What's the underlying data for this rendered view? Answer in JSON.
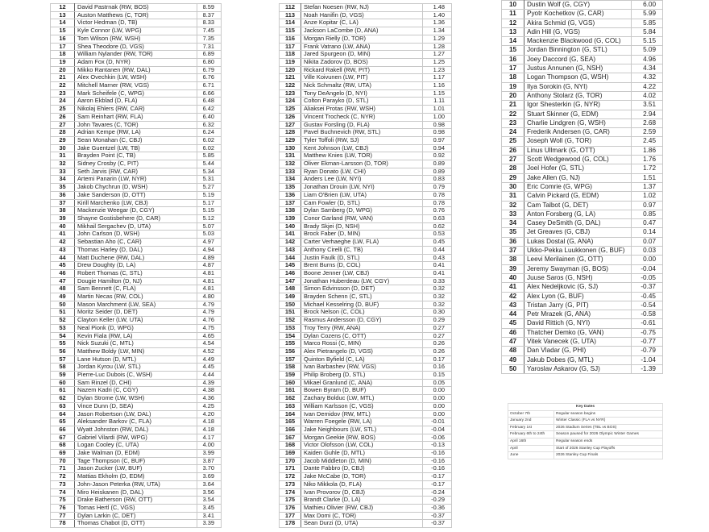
{
  "skater_table_1": [
    [
      "12",
      "David Pastrnak (RW, BOS)",
      "8.59"
    ],
    [
      "13",
      "Auston Matthews (C, TOR)",
      "8.37"
    ],
    [
      "14",
      "Victor Hedman (D, TB)",
      "8.33"
    ],
    [
      "15",
      "Kyle Connor (LW, WPG)",
      "7.45"
    ],
    [
      "16",
      "Tom Wilson (RW, WSH)",
      "7.35"
    ],
    [
      "17",
      "Shea Theodore (D, VGS)",
      "7.31"
    ],
    [
      "18",
      "William Nylander (RW, TOR)",
      "6.89"
    ],
    [
      "19",
      "Adam Fox (D, NYR)",
      "6.80"
    ],
    [
      "20",
      "Mikko Rantanen (RW, DAL)",
      "6.79"
    ],
    [
      "21",
      "Alex Ovechkin (LW, WSH)",
      "6.76"
    ],
    [
      "22",
      "Mitchell Marner (RW, VGS)",
      "6.71"
    ],
    [
      "23",
      "Mark Scheifele (C, WPG)",
      "6.66"
    ],
    [
      "24",
      "Aaron Ekblad (D, FLA)",
      "6.48"
    ],
    [
      "25",
      "Nikolaj Ehlers (RW, CAR)",
      "6.42"
    ],
    [
      "26",
      "Sam Reinhart (RW, FLA)",
      "6.40"
    ],
    [
      "27",
      "John Tavares (C, TOR)",
      "6.32"
    ],
    [
      "28",
      "Adrian Kempe (RW, LA)",
      "6.24"
    ],
    [
      "29",
      "Sean Monahan (C, CBJ)",
      "6.02"
    ],
    [
      "30",
      "Jake Guentzel (LW, TB)",
      "6.02"
    ],
    [
      "31",
      "Brayden Point (C, TB)",
      "5.85"
    ],
    [
      "32",
      "Sidney Crosby (C, PIT)",
      "5.44"
    ],
    [
      "33",
      "Seth Jarvis (RW, CAR)",
      "5.34"
    ],
    [
      "34",
      "Artemi Panarin (LW, NYR)",
      "5.31"
    ],
    [
      "35",
      "Jakob Chychrun (D, WSH)",
      "5.27"
    ],
    [
      "36",
      "Jake Sanderson (D, OTT)",
      "5.19"
    ],
    [
      "37",
      "Kirill Marchenko (LW, CBJ)",
      "5.17"
    ],
    [
      "38",
      "Mackenzie Weegar (D, CGY)",
      "5.15"
    ],
    [
      "39",
      "Shayne Gostisbehere (D, CAR)",
      "5.12"
    ],
    [
      "40",
      "Mikhail Sergachev (D, UTA)",
      "5.07"
    ],
    [
      "41",
      "John Carlson (D, WSH)",
      "5.03"
    ],
    [
      "42",
      "Sebastian Aho (C, CAR)",
      "4.97"
    ],
    [
      "43",
      "Thomas Harley (D, DAL)",
      "4.94"
    ],
    [
      "44",
      "Matt Duchene (RW, DAL)",
      "4.89"
    ],
    [
      "45",
      "Drew Doughty (D, LA)",
      "4.87"
    ],
    [
      "46",
      "Robert Thomas (C, STL)",
      "4.81"
    ],
    [
      "47",
      "Dougie Hamilton (D, NJ)",
      "4.81"
    ],
    [
      "48",
      "Sam Bennett (C, FLA)",
      "4.81"
    ],
    [
      "49",
      "Martin Necas (RW, COL)",
      "4.80"
    ],
    [
      "50",
      "Mason Marchment (LW, SEA)",
      "4.79"
    ],
    [
      "51",
      "Moritz Seider (D, DET)",
      "4.79"
    ],
    [
      "52",
      "Clayton Keller (LW, UTA)",
      "4.76"
    ],
    [
      "53",
      "Neal Pionk (D, WPG)",
      "4.75"
    ],
    [
      "54",
      "Kevin Fiala (RW, LA)",
      "4.65"
    ],
    [
      "55",
      "Nick Suzuki (C, MTL)",
      "4.54"
    ],
    [
      "56",
      "Matthew Boldy (LW, MIN)",
      "4.52"
    ],
    [
      "57",
      "Lane Hutson (D, MTL)",
      "4.49"
    ],
    [
      "58",
      "Jordan Kyrou (LW, STL)",
      "4.45"
    ],
    [
      "59",
      "Pierre-Luc Dubois (C, WSH)",
      "4.44"
    ],
    [
      "60",
      "Sam Rinzel (D, CHI)",
      "4.39"
    ],
    [
      "61",
      "Nazem Kadri (C, CGY)",
      "4.38"
    ],
    [
      "62",
      "Dylan Strome (LW, WSH)",
      "4.36"
    ],
    [
      "63",
      "Vince Dunn (D, SEA)",
      "4.25"
    ],
    [
      "64",
      "Jason Robertson (LW, DAL)",
      "4.20"
    ],
    [
      "65",
      "Aleksander Barkov (C, FLA)",
      "4.18"
    ],
    [
      "66",
      "Wyatt Johnston (RW, DAL)",
      "4.18"
    ],
    [
      "67",
      "Gabriel Vilardi (RW, WPG)",
      "4.17"
    ],
    [
      "68",
      "Logan Cooley (C, UTA)",
      "4.00"
    ],
    [
      "69",
      "Jake Walman (D, EDM)",
      "3.99"
    ],
    [
      "70",
      "Tage Thompson (C, BUF)",
      "3.87"
    ],
    [
      "71",
      "Jason Zucker (LW, BUF)",
      "3.70"
    ],
    [
      "72",
      "Mattias Ekholm (D, EDM)",
      "3.69"
    ],
    [
      "73",
      "John-Jason Peterka (RW, UTA)",
      "3.64"
    ],
    [
      "74",
      "Miro Heiskanen (D, DAL)",
      "3.56"
    ],
    [
      "75",
      "Drake Batherson (RW, OTT)",
      "3.54"
    ],
    [
      "76",
      "Tomas Hertl (C, VGS)",
      "3.45"
    ],
    [
      "77",
      "Dylan Larkin (C, DET)",
      "3.41"
    ],
    [
      "78",
      "Thomas Chabot (D, OTT)",
      "3.39"
    ]
  ],
  "skater_table_2": [
    [
      "112",
      "Stefan Noesen (RW, NJ)",
      "1.48"
    ],
    [
      "113",
      "Noah Hanifin (D, VGS)",
      "1.40"
    ],
    [
      "114",
      "Anze Kopitar (C, LA)",
      "1.36"
    ],
    [
      "115",
      "Jackson LaCombe (D, ANA)",
      "1.34"
    ],
    [
      "116",
      "Morgan Rielly (D, TOR)",
      "1.29"
    ],
    [
      "117",
      "Frank Vatrano (LW, ANA)",
      "1.28"
    ],
    [
      "118",
      "Jared Spurgeon (D, MIN)",
      "1.27"
    ],
    [
      "119",
      "Nikita Zadorov (D, BOS)",
      "1.25"
    ],
    [
      "120",
      "Rickard Rakell (RW, PIT)",
      "1.23"
    ],
    [
      "121",
      "Ville Koivunen (LW, PIT)",
      "1.17"
    ],
    [
      "122",
      "Nick Schmaltz (RW, UTA)",
      "1.16"
    ],
    [
      "123",
      "Tony DeAngelo (D, NYI)",
      "1.15"
    ],
    [
      "124",
      "Colton Parayko (D, STL)",
      "1.11"
    ],
    [
      "125",
      "Aliaksei Protas (RW, WSH)",
      "1.01"
    ],
    [
      "126",
      "Vincent Trocheck (C, NYR)",
      "1.00"
    ],
    [
      "127",
      "Gustav Forsling (D, FLA)",
      "0.98"
    ],
    [
      "128",
      "Pavel Buchnevich (RW, STL)",
      "0.98"
    ],
    [
      "129",
      "Tyler Toffoli (RW, SJ)",
      "0.97"
    ],
    [
      "130",
      "Kent Johnson (LW, CBJ)",
      "0.94"
    ],
    [
      "131",
      "Matthew Knies (LW, TOR)",
      "0.92"
    ],
    [
      "132",
      "Oliver Ekman-Larsson (D, TOR)",
      "0.89"
    ],
    [
      "133",
      "Ryan Donato (LW, CHI)",
      "0.89"
    ],
    [
      "134",
      "Anders Lee (LW, NYI)",
      "0.83"
    ],
    [
      "135",
      "Jonathan Drouin (LW, NYI)",
      "0.79"
    ],
    [
      "136",
      "Liam O'Brien (LW, UTA)",
      "0.78"
    ],
    [
      "137",
      "Cam Fowler (D, STL)",
      "0.78"
    ],
    [
      "138",
      "Dylan Samberg (D, WPG)",
      "0.76"
    ],
    [
      "139",
      "Conor Garland (RW, VAN)",
      "0.63"
    ],
    [
      "140",
      "Brady Skjei (D, NSH)",
      "0.62"
    ],
    [
      "141",
      "Brock Faber (D, MIN)",
      "0.53"
    ],
    [
      "142",
      "Carter Verhaeghe (LW, FLA)",
      "0.45"
    ],
    [
      "143",
      "Anthony Cirelli (C, TB)",
      "0.44"
    ],
    [
      "144",
      "Justin Faulk (D, STL)",
      "0.43"
    ],
    [
      "145",
      "Brent Burns (D, COL)",
      "0.41"
    ],
    [
      "146",
      "Boone Jenner (LW, CBJ)",
      "0.41"
    ],
    [
      "147",
      "Jonathan Huberdeau (LW, CGY)",
      "0.33"
    ],
    [
      "148",
      "Simon Edvinsson (D, DET)",
      "0.32"
    ],
    [
      "149",
      "Brayden Schenn (C, STL)",
      "0.32"
    ],
    [
      "150",
      "Michael Kesselring (D, BUF)",
      "0.32"
    ],
    [
      "151",
      "Brock Nelson (C, COL)",
      "0.30"
    ],
    [
      "152",
      "Rasmus Andersson (D, CGY)",
      "0.29"
    ],
    [
      "153",
      "Troy Terry (RW, ANA)",
      "0.27"
    ],
    [
      "154",
      "Dylan Cozens (C, OTT)",
      "0.27"
    ],
    [
      "155",
      "Marco Rossi (C, MIN)",
      "0.26"
    ],
    [
      "156",
      "Alex Pietrangelo (D, VGS)",
      "0.26"
    ],
    [
      "157",
      "Quinton Byfield (C, LA)",
      "0.17"
    ],
    [
      "158",
      "Ivan Barbashev (RW, VGS)",
      "0.16"
    ],
    [
      "159",
      "Philip Broberg (D, STL)",
      "0.15"
    ],
    [
      "160",
      "Mikael Granlund (C, ANA)",
      "0.05"
    ],
    [
      "161",
      "Bowen Byram (D, BUF)",
      "0.00"
    ],
    [
      "162",
      "Zachary Bolduc (LW, MTL)",
      "0.00"
    ],
    [
      "163",
      "William Karlsson (C, VGS)",
      "0.00"
    ],
    [
      "164",
      "Ivan Demidov (RW, MTL)",
      "0.00"
    ],
    [
      "165",
      "Warren Foegele (RW, LA)",
      "-0.01"
    ],
    [
      "166",
      "Jake Neighbours (LW, STL)",
      "-0.04"
    ],
    [
      "167",
      "Morgan Geekie (RW, BOS)",
      "-0.06"
    ],
    [
      "168",
      "Victor Olofsson (LW, COL)",
      "-0.13"
    ],
    [
      "169",
      "Kaiden Guhle (D, MTL)",
      "-0.16"
    ],
    [
      "170",
      "Jacob Middleton (D, MIN)",
      "-0.16"
    ],
    [
      "171",
      "Dante Fabbro (D, CBJ)",
      "-0.16"
    ],
    [
      "172",
      "Jake McCabe (D, TOR)",
      "-0.17"
    ],
    [
      "173",
      "Niko Mikkola (D, FLA)",
      "-0.17"
    ],
    [
      "174",
      "Ivan Provorov (D, CBJ)",
      "-0.24"
    ],
    [
      "175",
      "Brandt Clarke (D, LA)",
      "-0.29"
    ],
    [
      "176",
      "Mathieu Olivier (RW, CBJ)",
      "-0.36"
    ],
    [
      "177",
      "Max Domi (C, TOR)",
      "-0.37"
    ],
    [
      "178",
      "Sean Durzi (D, UTA)",
      "-0.37"
    ]
  ],
  "goalie_table": [
    [
      "10",
      "Dustin Wolf (G, CGY)",
      "6.00"
    ],
    [
      "11",
      "Pyotr Kochetkov (G, CAR)",
      "5.99"
    ],
    [
      "12",
      "Akira Schmid (G, VGS)",
      "5.85"
    ],
    [
      "13",
      "Adin Hill (G, VGS)",
      "5.84"
    ],
    [
      "14",
      "Mackenzie Blackwood (G, COL)",
      "5.15"
    ],
    [
      "15",
      "Jordan Binnington (G, STL)",
      "5.09"
    ],
    [
      "16",
      "Joey Daccord (G, SEA)",
      "4.96"
    ],
    [
      "17",
      "Justus Annunen (G, NSH)",
      "4.34"
    ],
    [
      "18",
      "Logan Thompson (G, WSH)",
      "4.32"
    ],
    [
      "19",
      "Ilya Sorokin (G, NYI)",
      "4.22"
    ],
    [
      "20",
      "Anthony Stolarz (G, TOR)",
      "4.02"
    ],
    [
      "21",
      "Igor Shesterkin (G, NYR)",
      "3.51"
    ],
    [
      "22",
      "Stuart Skinner (G, EDM)",
      "2.94"
    ],
    [
      "23",
      "Charlie Lindgren (G, WSH)",
      "2.68"
    ],
    [
      "24",
      "Frederik Andersen (G, CAR)",
      "2.59"
    ],
    [
      "25",
      "Joseph Woll (G, TOR)",
      "2.45"
    ],
    [
      "26",
      "Linus Ullmark (G, OTT)",
      "1.86"
    ],
    [
      "27",
      "Scott Wedgewood (G, COL)",
      "1.76"
    ],
    [
      "28",
      "Joel Hofer (G, STL)",
      "1.72"
    ],
    [
      "29",
      "Jake Allen (G, NJ)",
      "1.51"
    ],
    [
      "30",
      "Eric Comrie (G, WPG)",
      "1.37"
    ],
    [
      "31",
      "Calvin Pickard (G, EDM)",
      "1.02"
    ],
    [
      "32",
      "Cam Talbot (G, DET)",
      "0.97"
    ],
    [
      "33",
      "Anton Forsberg (G, LA)",
      "0.85"
    ],
    [
      "34",
      "Casey DeSmith (G, DAL)",
      "0.47"
    ],
    [
      "35",
      "Jet Greaves (G, CBJ)",
      "0.14"
    ],
    [
      "36",
      "Lukas Dostal (G, ANA)",
      "0.07"
    ],
    [
      "37",
      "Ukko-Pekka Luukkonen (G, BUF)",
      "0.03"
    ],
    [
      "38",
      "Leevi Merilainen (G, OTT)",
      "0.00"
    ],
    [
      "39",
      "Jeremy Swayman (G, BOS)",
      "-0.04"
    ],
    [
      "40",
      "Juuse Saros (G, NSH)",
      "-0.05"
    ],
    [
      "41",
      "Alex Nedeljkovic (G, SJ)",
      "-0.37"
    ],
    [
      "42",
      "Alex Lyon (G, BUF)",
      "-0.45"
    ],
    [
      "43",
      "Tristan Jarry (G, PIT)",
      "-0.54"
    ],
    [
      "44",
      "Petr Mrazek (G, ANA)",
      "-0.58"
    ],
    [
      "45",
      "David Rittich (G, NYI)",
      "-0.61"
    ],
    [
      "46",
      "Thatcher Demko (G, VAN)",
      "-0.75"
    ],
    [
      "47",
      "Vitek Vanecek (G, UTA)",
      "-0.77"
    ],
    [
      "48",
      "Dan Vladar (G, PHI)",
      "-0.79"
    ],
    [
      "49",
      "Jakub Dobes (G, MTL)",
      "-1.04"
    ],
    [
      "50",
      "Yaroslav Askarov (G, SJ)",
      "-1.39"
    ]
  ],
  "key_dates": {
    "title": "Key Dates",
    "rows": [
      [
        "October 7th",
        "Regular season begins"
      ],
      [
        "January 2nd",
        "Winter Classic (FLA vs NYR)"
      ],
      [
        "February 1st",
        "2026 Stadium Series (TBL vs BOS)"
      ],
      [
        "February 6th to 24th",
        "Season paused for 2026 Olympic Winter Games"
      ],
      [
        "April 16th",
        "Regular season ends"
      ],
      [
        "April",
        "Start of 2026 Stanley Cup Playoffs"
      ],
      [
        "June",
        "2026 Stanley Cup Finals"
      ]
    ]
  }
}
